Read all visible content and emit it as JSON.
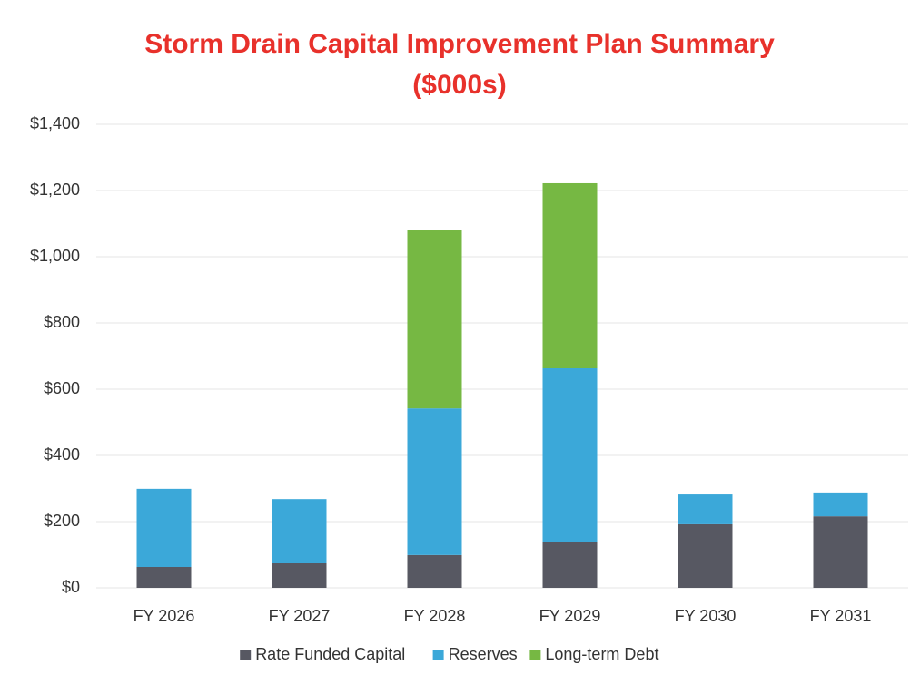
{
  "chart_data": {
    "type": "stacked_bar",
    "title": "Storm Drain Capital Improvement Plan Summary",
    "subtitle": "($000s)",
    "categories": [
      "FY 2026",
      "FY 2027",
      "FY 2028",
      "FY 2029",
      "FY 2030",
      "FY 2031"
    ],
    "series": [
      {
        "name": "Rate Funded Capital",
        "color": "#575862",
        "values": [
          63,
          74,
          99,
          137,
          192,
          216
        ]
      },
      {
        "name": "Reserves",
        "color": "#3ba8d9",
        "values": [
          236,
          194,
          443,
          526,
          90,
          72
        ]
      },
      {
        "name": "Long-term Debt",
        "color": "#76b843",
        "values": [
          0,
          0,
          540,
          559,
          0,
          0
        ]
      }
    ],
    "ylim": [
      0,
      1400
    ],
    "yticks": [
      {
        "value": 0,
        "label": "$0"
      },
      {
        "value": 200,
        "label": "$200"
      },
      {
        "value": 400,
        "label": "$400"
      },
      {
        "value": 600,
        "label": "$600"
      },
      {
        "value": 800,
        "label": "$800"
      },
      {
        "value": 1000,
        "label": "$1,000"
      },
      {
        "value": 1200,
        "label": "$1,200"
      },
      {
        "value": 1400,
        "label": "$1,400"
      }
    ],
    "grid": true,
    "legend": "bottom"
  }
}
